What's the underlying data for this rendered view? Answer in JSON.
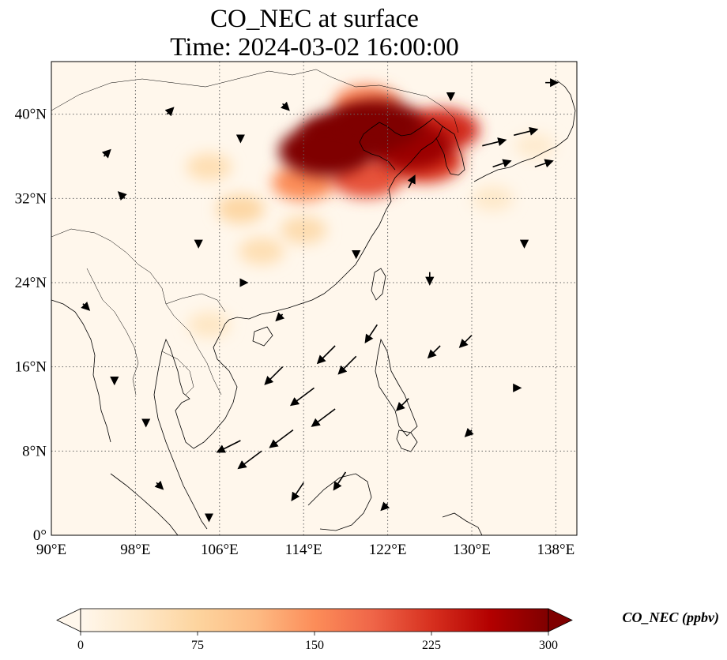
{
  "title": {
    "line1": "CO_NEC at surface",
    "line2": "Time: 2024-03-02 16:00:00"
  },
  "map": {
    "lon_range": [
      90,
      140
    ],
    "lat_range": [
      0,
      45
    ],
    "lon_ticks": [
      "90°E",
      "98°E",
      "106°E",
      "114°E",
      "122°E",
      "130°E",
      "138°E"
    ],
    "lon_tick_values": [
      90,
      98,
      106,
      114,
      122,
      130,
      138
    ],
    "lat_ticks": [
      "0°",
      "8°N",
      "16°N",
      "24°N",
      "32°N",
      "40°N"
    ],
    "lat_tick_values": [
      0,
      8,
      16,
      24,
      32,
      40
    ],
    "gridlines": true,
    "plumes": [
      {
        "lon": 118,
        "lat": 38,
        "value": 300
      },
      {
        "lon": 121,
        "lat": 39,
        "value": 300
      },
      {
        "lon": 116,
        "lat": 36.5,
        "value": 300
      },
      {
        "lon": 124,
        "lat": 37,
        "value": 280
      },
      {
        "lon": 127,
        "lat": 38.5,
        "value": 230
      },
      {
        "lon": 125.5,
        "lat": 35.5,
        "value": 220
      },
      {
        "lon": 120,
        "lat": 34,
        "value": 200
      },
      {
        "lon": 114,
        "lat": 33.5,
        "value": 150
      },
      {
        "lon": 120,
        "lat": 41,
        "value": 160
      },
      {
        "lon": 108,
        "lat": 31,
        "value": 70
      },
      {
        "lon": 105,
        "lat": 35,
        "value": 55
      },
      {
        "lon": 110,
        "lat": 27,
        "value": 55
      },
      {
        "lon": 114,
        "lat": 29,
        "value": 60
      },
      {
        "lon": 105,
        "lat": 20,
        "value": 40
      },
      {
        "lon": 132,
        "lat": 32,
        "value": 35
      },
      {
        "lon": 136,
        "lat": 37,
        "value": 30
      }
    ],
    "wind_vectors": [
      {
        "lon": 115,
        "lat": 14,
        "u": -4,
        "v": -3
      },
      {
        "lon": 117,
        "lat": 12,
        "u": -4,
        "v": -3
      },
      {
        "lon": 113,
        "lat": 10,
        "u": -4,
        "v": -3
      },
      {
        "lon": 110,
        "lat": 8,
        "u": -4,
        "v": -3
      },
      {
        "lon": 108,
        "lat": 9,
        "u": -4,
        "v": -2
      },
      {
        "lon": 119,
        "lat": 17,
        "u": -3,
        "v": -3
      },
      {
        "lon": 121,
        "lat": 20,
        "u": -2,
        "v": -3
      },
      {
        "lon": 117,
        "lat": 18,
        "u": -3,
        "v": -3
      },
      {
        "lon": 112,
        "lat": 16,
        "u": -3,
        "v": -3
      },
      {
        "lon": 114,
        "lat": 5,
        "u": -2,
        "v": -3
      },
      {
        "lon": 118,
        "lat": 6,
        "u": -2,
        "v": -3
      },
      {
        "lon": 124,
        "lat": 13,
        "u": -2,
        "v": -2
      },
      {
        "lon": 127,
        "lat": 18,
        "u": -2,
        "v": -2
      },
      {
        "lon": 130,
        "lat": 19,
        "u": -2,
        "v": -2
      },
      {
        "lon": 126,
        "lat": 25,
        "u": 0,
        "v": -2
      },
      {
        "lon": 131,
        "lat": 37,
        "u": 4,
        "v": 1
      },
      {
        "lon": 134,
        "lat": 38,
        "u": 4,
        "v": 1
      },
      {
        "lon": 132,
        "lat": 35,
        "u": 3,
        "v": 1
      },
      {
        "lon": 136,
        "lat": 35,
        "u": 3,
        "v": 1
      },
      {
        "lon": 124,
        "lat": 33,
        "u": 1,
        "v": 2
      },
      {
        "lon": 95,
        "lat": 36,
        "u": 1,
        "v": 1
      },
      {
        "lon": 97,
        "lat": 32,
        "u": -1,
        "v": 1
      },
      {
        "lon": 93,
        "lat": 22,
        "u": 1,
        "v": -1
      },
      {
        "lon": 96,
        "lat": 15,
        "u": 0,
        "v": -1
      },
      {
        "lon": 100,
        "lat": 5,
        "u": 1,
        "v": -1
      },
      {
        "lon": 104,
        "lat": 28,
        "u": 0,
        "v": -1
      },
      {
        "lon": 108,
        "lat": 24,
        "u": 1,
        "v": 0
      },
      {
        "lon": 101,
        "lat": 40,
        "u": 1,
        "v": 1
      },
      {
        "lon": 108,
        "lat": 38,
        "u": 0,
        "v": -1
      },
      {
        "lon": 112,
        "lat": 41,
        "u": 1,
        "v": -1
      },
      {
        "lon": 128,
        "lat": 42,
        "u": 0,
        "v": -1
      },
      {
        "lon": 137,
        "lat": 43,
        "u": 2,
        "v": 0
      },
      {
        "lon": 135,
        "lat": 28,
        "u": 0,
        "v": -1
      },
      {
        "lon": 130,
        "lat": 10,
        "u": -1,
        "v": -1
      },
      {
        "lon": 122,
        "lat": 3,
        "u": -1,
        "v": -1
      },
      {
        "lon": 105,
        "lat": 2,
        "u": 0,
        "v": -1
      },
      {
        "lon": 134,
        "lat": 14,
        "u": 1,
        "v": 0
      },
      {
        "lon": 119,
        "lat": 27,
        "u": 0,
        "v": -1
      },
      {
        "lon": 112,
        "lat": 21,
        "u": -1,
        "v": -1
      },
      {
        "lon": 99,
        "lat": 11,
        "u": 0,
        "v": -1
      }
    ]
  },
  "colorbar": {
    "ticks": [
      "0",
      "75",
      "150",
      "225",
      "300"
    ],
    "tick_values": [
      0,
      75,
      150,
      225,
      300
    ],
    "label": "CO_NEC (ppbv)",
    "extend": "both",
    "cmap": [
      "#fff7ec",
      "#fee8c8",
      "#fdd49e",
      "#fdbb84",
      "#fc8d59",
      "#ef6548",
      "#d7301f",
      "#b30000",
      "#7f0000"
    ]
  }
}
